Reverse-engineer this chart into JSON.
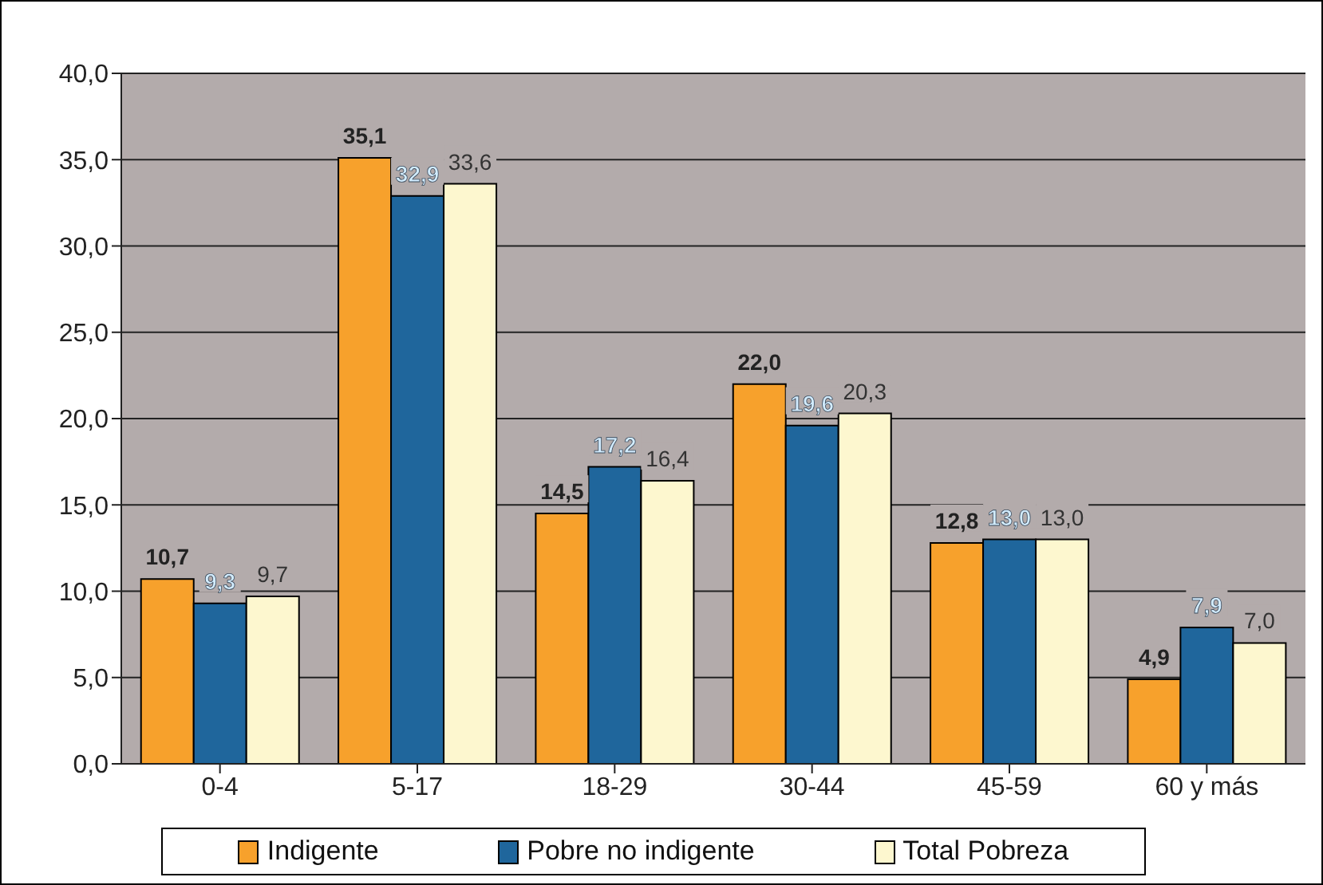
{
  "chart_data": {
    "type": "bar",
    "categories": [
      "0-4",
      "5-17",
      "18-29",
      "30-44",
      "45-59",
      "60  y más"
    ],
    "series": [
      {
        "name": "Indigente",
        "color": "#f7a12c",
        "values": [
          10.7,
          35.1,
          14.5,
          22.0,
          12.8,
          4.9
        ],
        "value_labels": [
          "10,7",
          "35,1",
          "14,5",
          "22,0",
          "12,8",
          "4,9"
        ]
      },
      {
        "name": "Pobre no indigente",
        "color": "#1f669c",
        "values": [
          9.3,
          32.9,
          17.2,
          19.6,
          13.0,
          7.9
        ],
        "value_labels": [
          "9,3",
          "32,9",
          "17,2",
          "19,6",
          "13,0",
          "7,9"
        ]
      },
      {
        "name": "Total Pobreza",
        "color": "#fdf7cf",
        "values": [
          9.7,
          33.6,
          16.4,
          20.3,
          13.0,
          7.0
        ],
        "value_labels": [
          "9,7",
          "33,6",
          "16,4",
          "20,3",
          "13,0",
          "7,0"
        ]
      }
    ],
    "ylim": [
      0,
      40
    ],
    "yticks": [
      {
        "value": 0,
        "label": "0,0"
      },
      {
        "value": 5,
        "label": "5,0"
      },
      {
        "value": 10,
        "label": "10,0"
      },
      {
        "value": 15,
        "label": "15,0"
      },
      {
        "value": 20,
        "label": "20,0"
      },
      {
        "value": 25,
        "label": "25,0"
      },
      {
        "value": 30,
        "label": "30,0"
      },
      {
        "value": 35,
        "label": "35,0"
      },
      {
        "value": 40,
        "label": "40,0"
      }
    ],
    "grid": "y",
    "legend": "bottom"
  }
}
